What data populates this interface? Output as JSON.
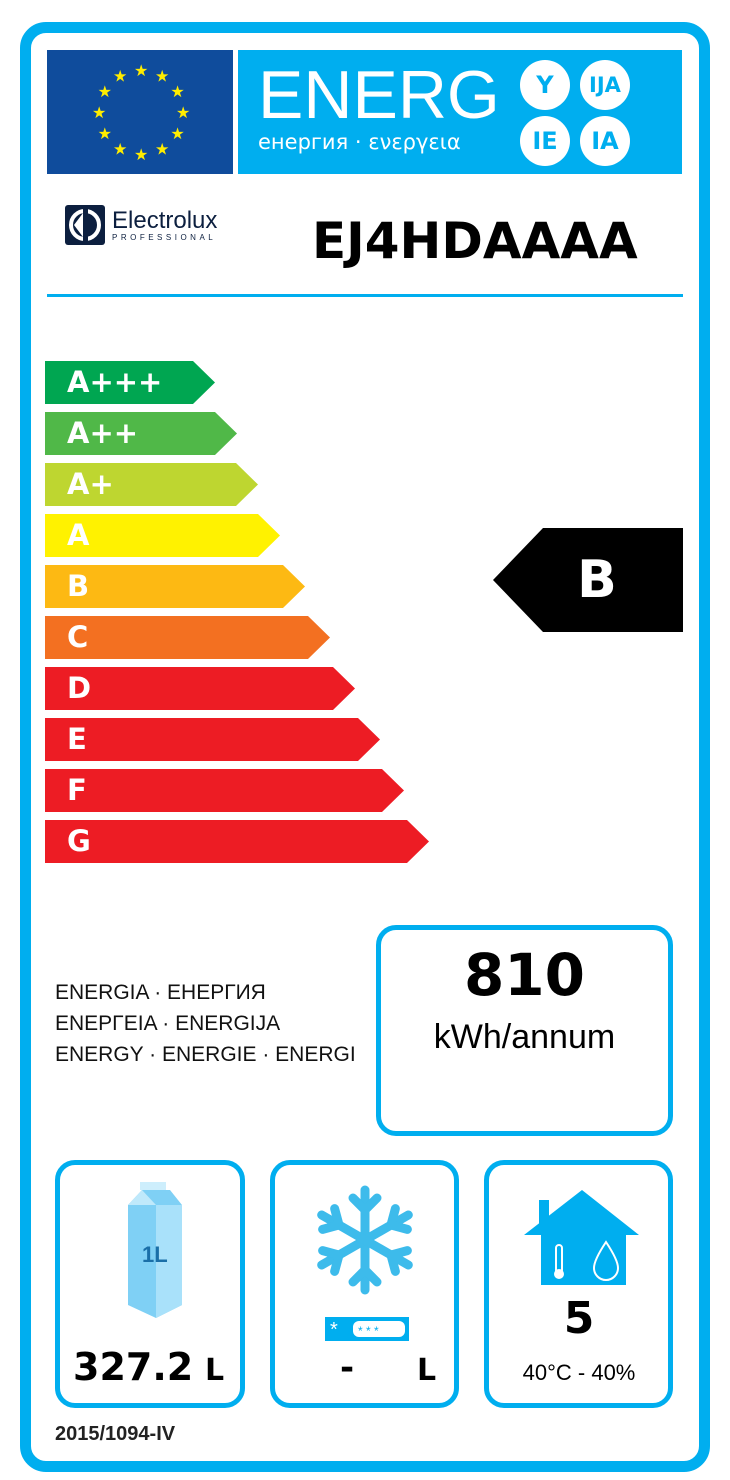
{
  "header": {
    "energy_word": "ENERG",
    "subtitle": "енергия · ενεργεια",
    "suffixes": [
      "Y",
      "IJA",
      "IE",
      "IA"
    ]
  },
  "brand": {
    "name": "Electrolux",
    "tagline": "PROFESSIONAL"
  },
  "model": "EJ4HDAAAA",
  "scale": [
    {
      "label": "A+++",
      "color": "#00a651"
    },
    {
      "label": "A++",
      "color": "#50b848"
    },
    {
      "label": "A+",
      "color": "#bed630"
    },
    {
      "label": "A",
      "color": "#fff200"
    },
    {
      "label": "B",
      "color": "#fdb913"
    },
    {
      "label": "C",
      "color": "#f37021"
    },
    {
      "label": "D",
      "color": "#ed1c24"
    },
    {
      "label": "E",
      "color": "#ed1c24"
    },
    {
      "label": "F",
      "color": "#ed1c24"
    },
    {
      "label": "G",
      "color": "#ed1c24"
    }
  ],
  "rating": "B",
  "energy_labels": [
    "ENERGIA · ЕНЕРГИЯ",
    "ΕΝΕΡΓΕΙΑ · ENERGIJA",
    "ENERGY · ENERGIE · ENERGI"
  ],
  "consumption": {
    "value": "810",
    "unit": "kWh/annum"
  },
  "chilled_volume": {
    "icon": "milk-carton-icon",
    "carton_label": "1L",
    "value": "327.2",
    "unit": "L"
  },
  "frozen_volume": {
    "icon": "snowflake-icon",
    "value": "-",
    "unit": "L"
  },
  "climate": {
    "icon": "house-climate-icon",
    "class": "5",
    "conditions": "40°C - 40%"
  },
  "regulation": "2015/1094-IV"
}
